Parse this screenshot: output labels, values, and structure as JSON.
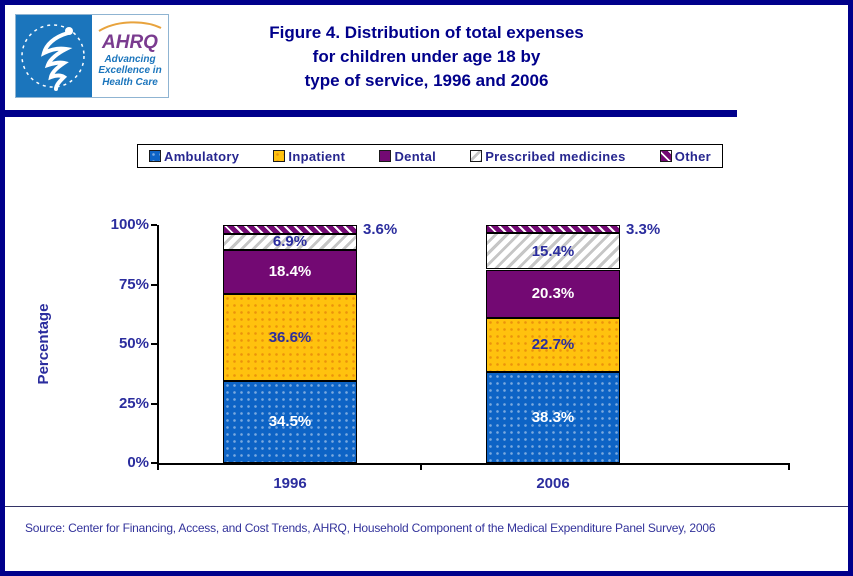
{
  "header": {
    "logo": {
      "hhs_seal": "hhs-eagle-seal",
      "org": "AHRQ",
      "tagline_lines": [
        "Advancing",
        "Excellence in",
        "Health Care"
      ]
    },
    "title_lines": [
      "Figure 4. Distribution of total expenses",
      "for children under age 18 by",
      "type of service, 1996 and 2006"
    ]
  },
  "colors": {
    "page_border": "#00008B",
    "title_text": "#00008B",
    "chart_text": "#2B2D9E",
    "axis": "#000000",
    "ambulatory_blue": "#0D63C5",
    "inpatient_yellow": "#FFC20E",
    "dental_purple": "#730973",
    "hatch_gray": "#C6C6C6",
    "white": "#FFFFFF"
  },
  "chart_data": {
    "type": "bar",
    "stacked": true,
    "title": "Distribution of total expenses for children under age 18 by type of service, 1996 and 2006",
    "categories": [
      "1996",
      "2006"
    ],
    "series": [
      {
        "name": "Ambulatory",
        "values": [
          34.5,
          38.3
        ],
        "color": "#0D63C5",
        "pattern": "dots-lighten",
        "label_color": "#FFFFFF"
      },
      {
        "name": "Inpatient",
        "values": [
          36.6,
          22.7
        ],
        "color": "#FFC20E",
        "pattern": "dots-darken",
        "label_color": "#2B2D9E"
      },
      {
        "name": "Dental",
        "values": [
          18.4,
          20.3
        ],
        "color": "#730973",
        "pattern": "",
        "label_color": "#FFFFFF"
      },
      {
        "name": "Prescribed medicines",
        "values": [
          6.9,
          15.4
        ],
        "color": "",
        "pattern": "hatch-gray",
        "label_color": "#2B2D9E"
      },
      {
        "name": "Other",
        "values": [
          3.6,
          3.3
        ],
        "color": "",
        "pattern": "hatch-purple",
        "label_color": "#2B2D9E",
        "label_outside": true
      }
    ],
    "ylabel": "Percentage",
    "xlabel": "",
    "ylim": [
      0,
      100
    ],
    "y_ticks": [
      "0%",
      "25%",
      "50%",
      "75%",
      "100%"
    ],
    "grid": false,
    "legend_position": "top"
  },
  "source": "Source: Center for Financing, Access, and Cost Trends, AHRQ, Household Component of the Medical Expenditure Panel Survey, 2006"
}
